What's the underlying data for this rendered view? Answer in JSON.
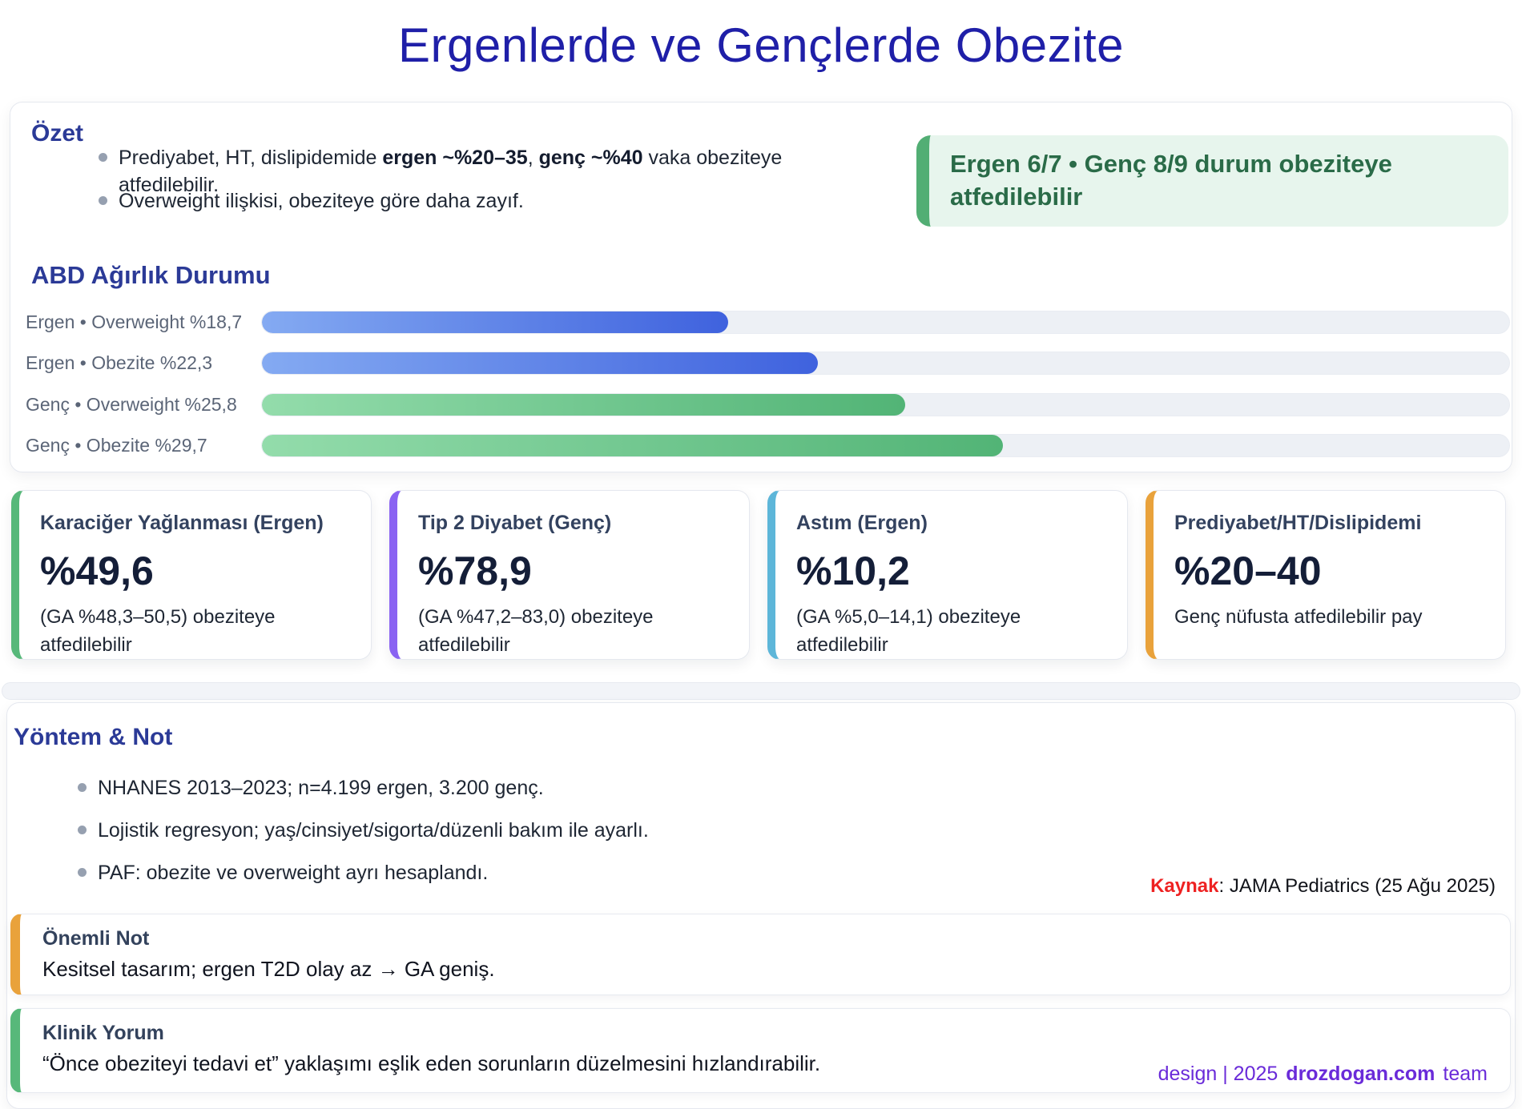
{
  "title": "Ergenlerde ve Gençlerde Obezite",
  "summary": {
    "heading": "Özet",
    "bullet1": {
      "pre": "Prediyabet, HT, dislipidemide ",
      "bold1": "ergen ~%20–35",
      "sep": ", ",
      "bold2": "genç ~%40",
      "post": " vaka obeziteye atfedilebilir."
    },
    "bullet2": {
      "text": "Overweight ilişkisi, obeziteye göre daha zayıf."
    },
    "badge": {
      "text": "Ergen 6/7 • Genç 8/9 durum obeziteye atfedilebilir",
      "bg": "#e7f5ed",
      "accent": "#52ae74",
      "text_color": "#2a6b48"
    }
  },
  "chart_data": {
    "type": "bar",
    "orientation": "horizontal",
    "title": "ABD Ağırlık Durumu",
    "categories": [
      "Ergen • Overweight",
      "Ergen • Obezite",
      "Genç • Overweight",
      "Genç • Obezite"
    ],
    "values": [
      18.7,
      22.3,
      25.8,
      29.7
    ],
    "labels": [
      "Ergen • Overweight %18,7",
      "Ergen • Obezite %22,3",
      "Genç • Overweight %25,8",
      "Genç • Obezite %29,7"
    ],
    "xlim": [
      0,
      50
    ],
    "grid": false,
    "legend": "none",
    "groups": [
      "ergen",
      "ergen",
      "genc",
      "genc"
    ],
    "colors": {
      "ergen": [
        "#84aaf2",
        "#3f62de"
      ],
      "genc": [
        "#93dcab",
        "#52b476"
      ],
      "track": "#edf0f5"
    }
  },
  "stat_cards": [
    {
      "title": "Karaciğer Yağlanması (Ergen)",
      "value": "%49,6",
      "desc": "(GA %48,3–50,5) obeziteye atfedilebilir",
      "accent": "#57b87a"
    },
    {
      "title": "Tip 2 Diyabet (Genç)",
      "value": "%78,9",
      "desc": "(GA %47,2–83,0) obeziteye atfedilebilir",
      "accent": "#8a63f2"
    },
    {
      "title": "Astım (Ergen)",
      "value": "%10,2",
      "desc": "(GA %5,0–14,1) obeziteye atfedilebilir",
      "accent": "#5db6d9"
    },
    {
      "title": "Prediyabet/HT/Dislipidemi",
      "value": "%20–40",
      "desc": "Genç nüfusta atfedilebilir pay",
      "accent": "#e9a23b"
    }
  ],
  "methods": {
    "heading": "Yöntem & Not",
    "bullets": [
      "NHANES 2013–2023; n=4.199 ergen, 3.200 genç.",
      "Lojistik regresyon; yaş/cinsiyet/sigorta/düzenli bakım ile ayarlı.",
      "PAF: obezite ve overweight ayrı hesaplandı."
    ],
    "source_label": "Kaynak",
    "source_rest": ": JAMA Pediatrics (25 Ağu 2025)"
  },
  "notes": [
    {
      "title": "Önemli Not",
      "body": "Kesitsel tasarım; ergen T2D olay az → GA geniş.",
      "accent": "#e9a23b"
    },
    {
      "title": "Klinik Yorum",
      "body": "“Önce obeziteyi tedavi et” yaklaşımı eşlik eden sorunların düzelmesini hızlandırabilir.",
      "accent": "#57b87a"
    }
  ],
  "footer": {
    "pre": "design | 2025",
    "brand": "drozdogan.com",
    "post": "team"
  }
}
